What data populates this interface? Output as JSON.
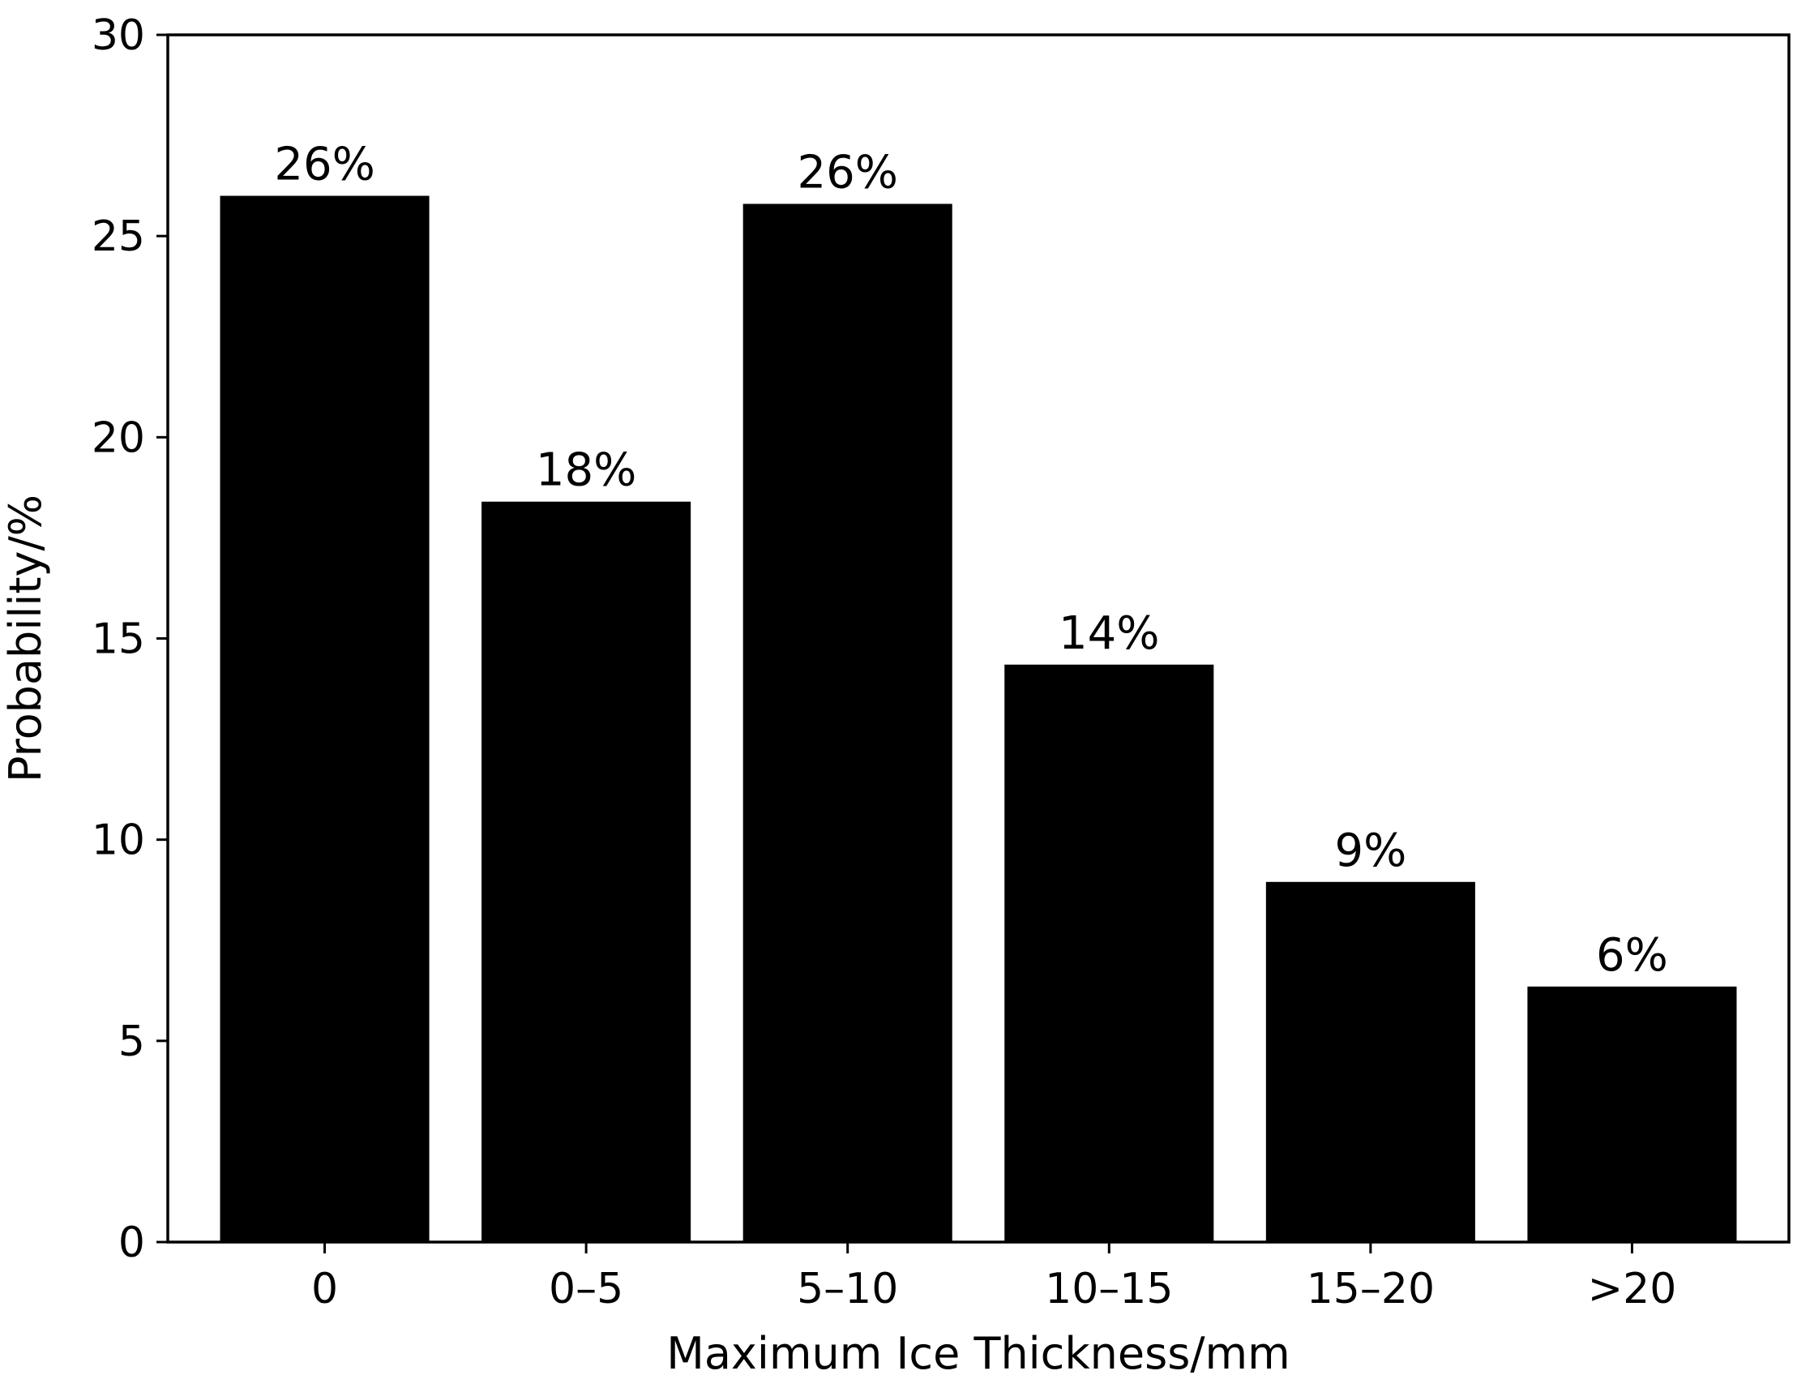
{
  "chart_data": {
    "type": "bar",
    "title": "",
    "xlabel": "Maximum Ice Thickness/mm",
    "ylabel": "Probability/%",
    "categories": [
      "0",
      "0–5",
      "5–10",
      "10–15",
      "15–20",
      ">20"
    ],
    "values": [
      26.0,
      18.4,
      25.8,
      14.35,
      8.95,
      6.35
    ],
    "bar_labels": [
      "26%",
      "18%",
      "26%",
      "14%",
      "9%",
      "6%"
    ],
    "ylim": [
      0,
      30
    ],
    "yticks": [
      0,
      5,
      10,
      15,
      20,
      25,
      30
    ],
    "grid": false,
    "legend": "none",
    "bar_color": "#000000"
  }
}
